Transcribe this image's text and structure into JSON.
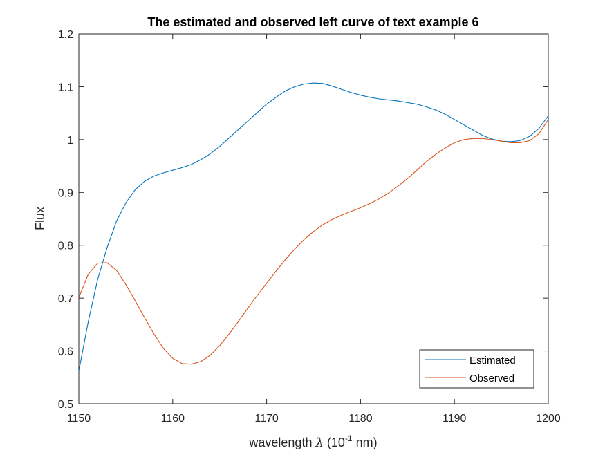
{
  "chart_data": {
    "type": "line",
    "title": "The estimated and observed left curve of text example 6",
    "xlabel": {
      "prefix": "wavelength ",
      "symbol": "λ",
      "unit_open": " (10",
      "unit_exp": "-1",
      "unit_close": " nm)"
    },
    "ylabel": "Flux",
    "xlim": [
      1150,
      1200
    ],
    "ylim": [
      0.5,
      1.2
    ],
    "xticks": [
      1150,
      1160,
      1170,
      1180,
      1190,
      1200
    ],
    "xtick_labels": [
      "1150",
      "1160",
      "1170",
      "1180",
      "1190",
      "1200"
    ],
    "yticks": [
      0.5,
      0.6,
      0.7,
      0.8,
      0.9,
      1.0,
      1.1,
      1.2
    ],
    "ytick_labels": [
      "0.5",
      "0.6",
      "0.7",
      "0.8",
      "0.9",
      "1",
      "1.1",
      "1.2"
    ],
    "grid": false,
    "legend_position": "bottom-right",
    "series": [
      {
        "name": "Estimated",
        "color": "#0072BD",
        "x": [
          1150,
          1151,
          1152,
          1153,
          1154,
          1155,
          1156,
          1157,
          1158,
          1159,
          1160,
          1161,
          1162,
          1163,
          1164,
          1165,
          1166,
          1167,
          1168,
          1169,
          1170,
          1171,
          1172,
          1173,
          1174,
          1175,
          1176,
          1177,
          1178,
          1179,
          1180,
          1181,
          1182,
          1183,
          1184,
          1185,
          1186,
          1187,
          1188,
          1189,
          1190,
          1191,
          1192,
          1193,
          1194,
          1195,
          1196,
          1197,
          1198,
          1199,
          1200
        ],
        "y": [
          0.562,
          0.655,
          0.735,
          0.795,
          0.845,
          0.88,
          0.905,
          0.921,
          0.931,
          0.937,
          0.942,
          0.947,
          0.953,
          0.962,
          0.973,
          0.987,
          1.003,
          1.019,
          1.035,
          1.051,
          1.067,
          1.08,
          1.092,
          1.1,
          1.105,
          1.107,
          1.106,
          1.101,
          1.095,
          1.089,
          1.084,
          1.08,
          1.077,
          1.075,
          1.073,
          1.07,
          1.067,
          1.062,
          1.056,
          1.048,
          1.038,
          1.028,
          1.018,
          1.008,
          1.001,
          0.997,
          0.996,
          0.998,
          1.006,
          1.021,
          1.045
        ]
      },
      {
        "name": "Observed",
        "color": "#D95319",
        "x": [
          1150,
          1151,
          1152,
          1153,
          1154,
          1155,
          1156,
          1157,
          1158,
          1159,
          1160,
          1161,
          1162,
          1163,
          1164,
          1165,
          1166,
          1167,
          1168,
          1169,
          1170,
          1171,
          1172,
          1173,
          1174,
          1175,
          1176,
          1177,
          1178,
          1179,
          1180,
          1181,
          1182,
          1183,
          1184,
          1185,
          1186,
          1187,
          1188,
          1189,
          1190,
          1191,
          1192,
          1193,
          1194,
          1195,
          1196,
          1197,
          1198,
          1199,
          1200
        ],
        "y": [
          0.701,
          0.745,
          0.766,
          0.767,
          0.753,
          0.726,
          0.695,
          0.663,
          0.632,
          0.605,
          0.586,
          0.576,
          0.575,
          0.58,
          0.592,
          0.61,
          0.632,
          0.656,
          0.681,
          0.705,
          0.728,
          0.751,
          0.773,
          0.793,
          0.811,
          0.826,
          0.839,
          0.849,
          0.857,
          0.864,
          0.871,
          0.879,
          0.888,
          0.899,
          0.912,
          0.926,
          0.942,
          0.958,
          0.972,
          0.984,
          0.994,
          1.0,
          1.002,
          1.002,
          1.0,
          0.997,
          0.994,
          0.994,
          0.998,
          1.011,
          1.038
        ]
      }
    ]
  }
}
